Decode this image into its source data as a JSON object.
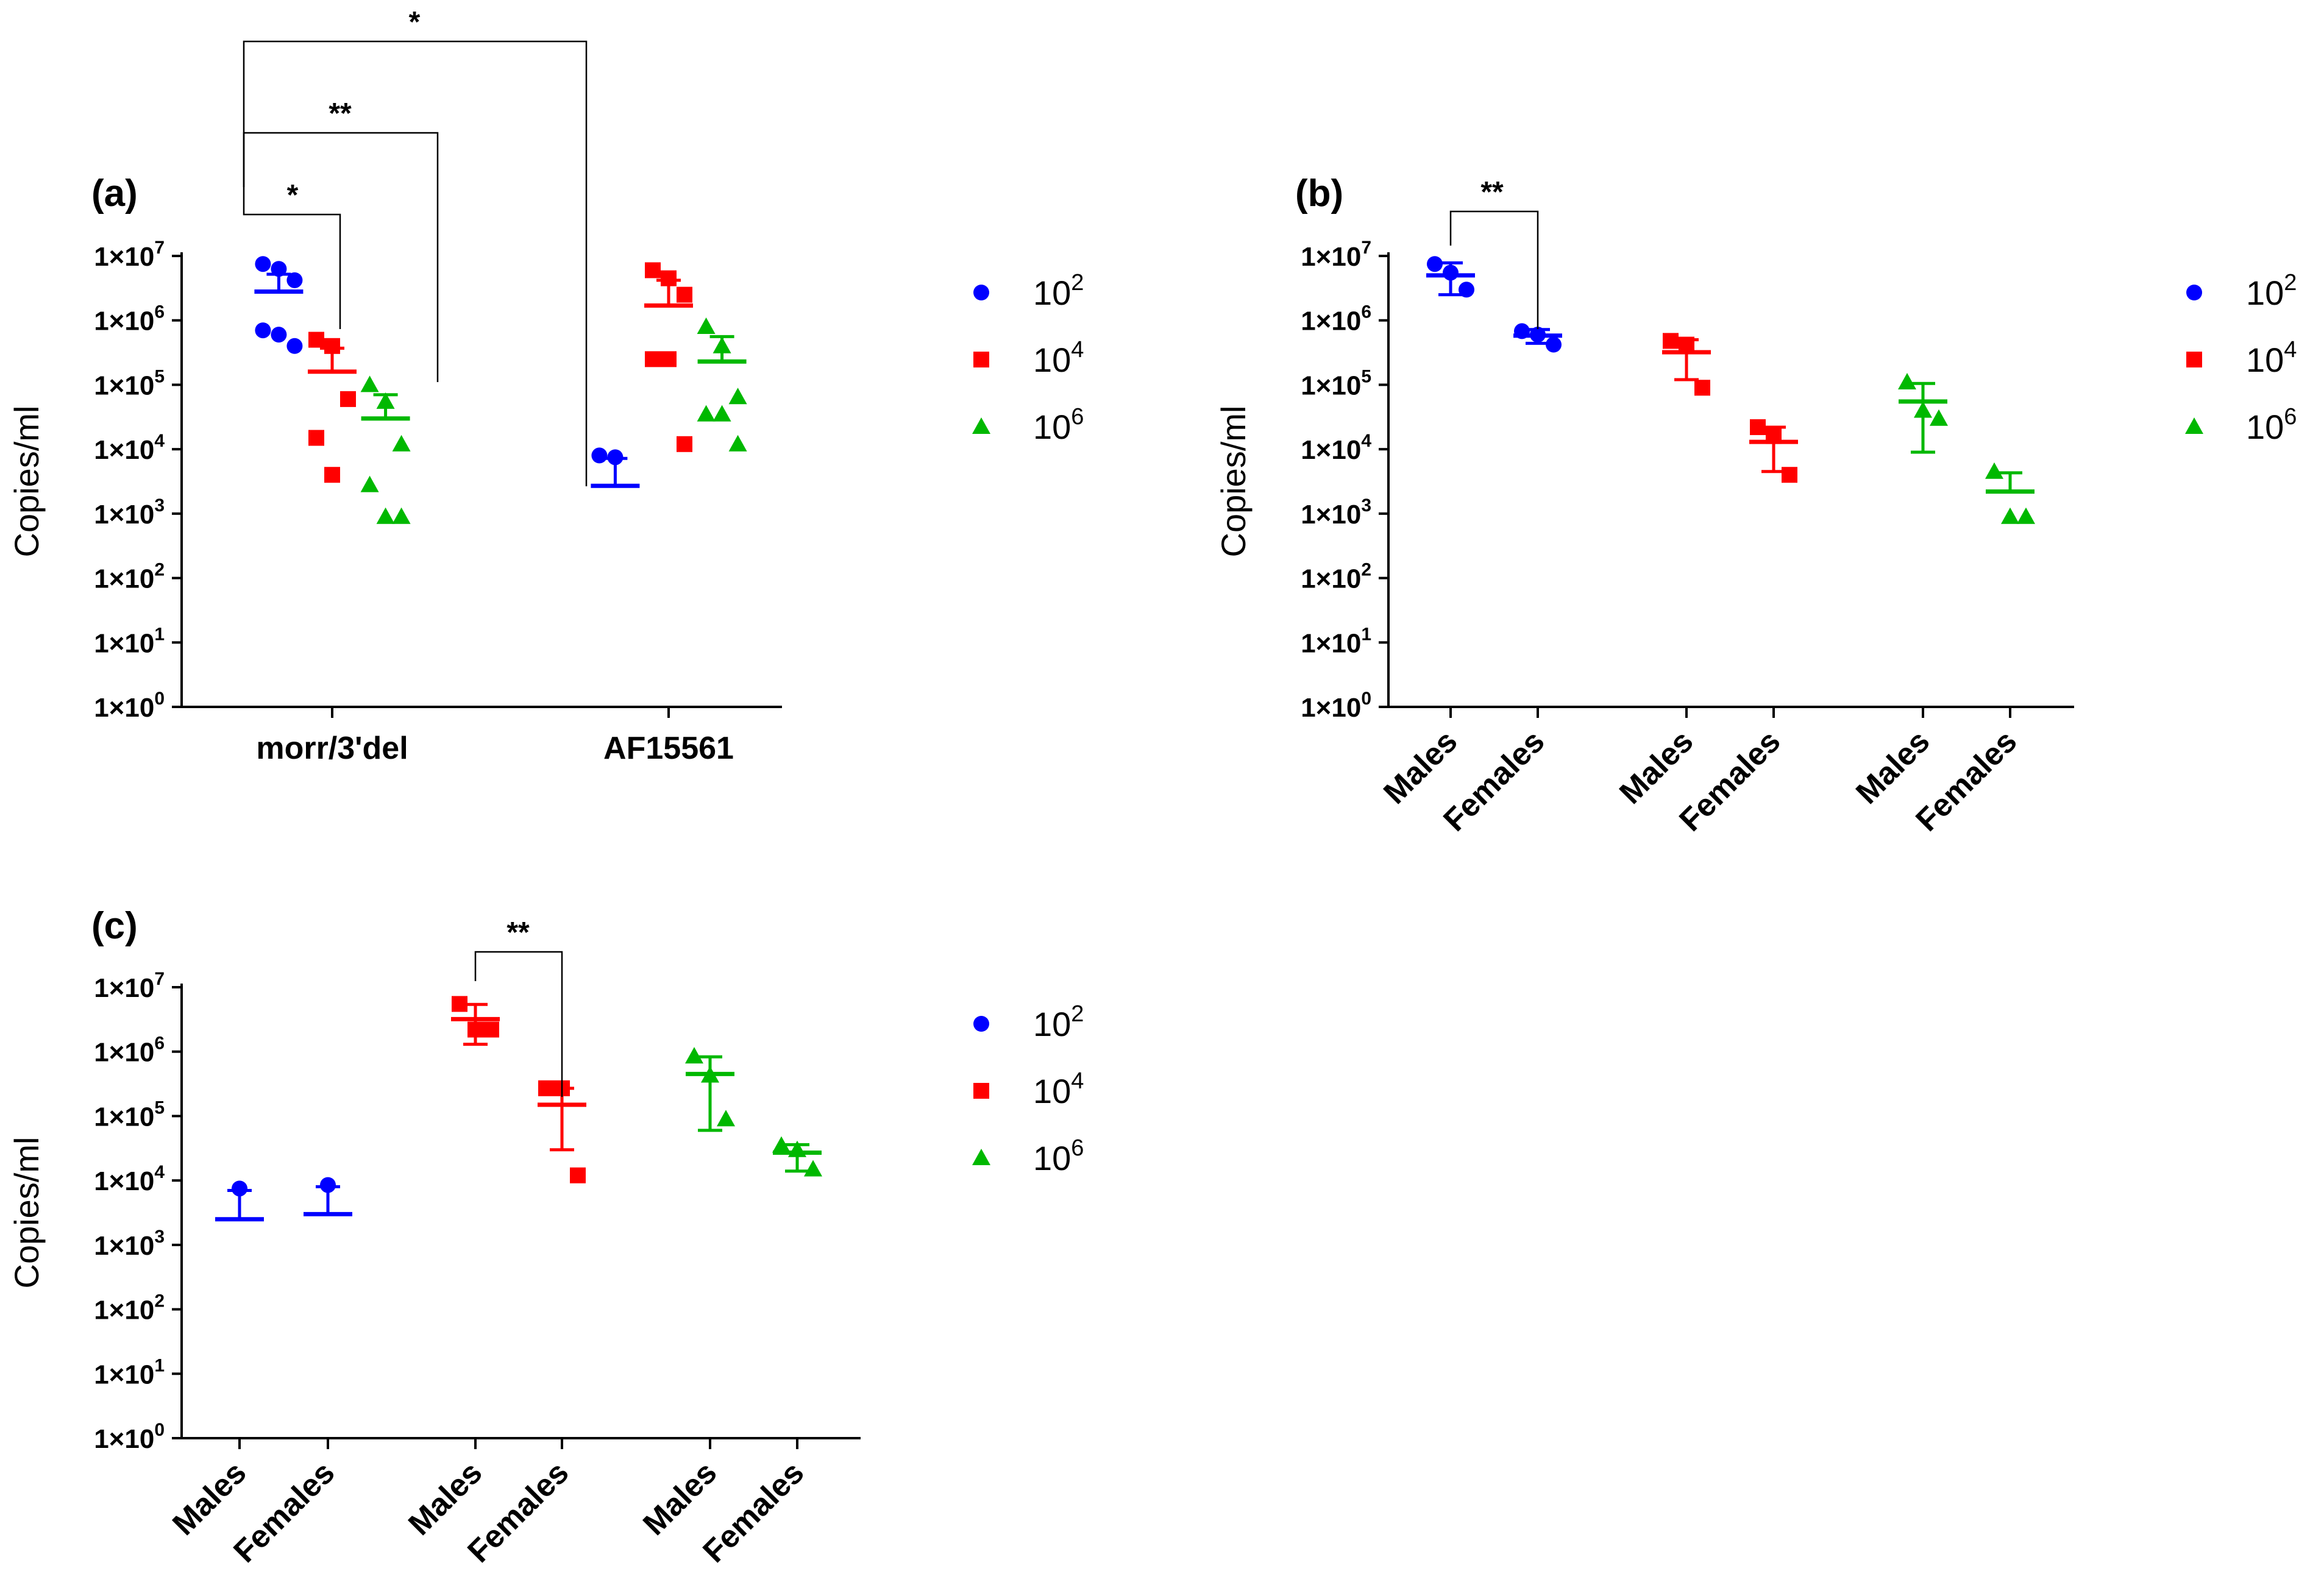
{
  "colors": {
    "blue": "#0000ff",
    "red": "#ff0000",
    "green": "#00b800"
  },
  "legend": [
    {
      "base": "10",
      "exp": "2",
      "marker": "circle",
      "color": "#0000ff"
    },
    {
      "base": "10",
      "exp": "4",
      "marker": "square",
      "color": "#ff0000"
    },
    {
      "base": "10",
      "exp": "6",
      "marker": "triangle",
      "color": "#00b800"
    }
  ],
  "chart_data": [
    {
      "type": "scatter",
      "panel": "(a)",
      "ylabel": "Copies/ml",
      "yscale": "log",
      "ylim": [
        1,
        10000000
      ],
      "ytick_exponents": [
        0,
        1,
        2,
        3,
        4,
        5,
        6,
        7
      ],
      "tick_prefix": "1×10",
      "categories": [
        "morr/3'del",
        "AF15561"
      ],
      "series": [
        {
          "name": "10^2",
          "color": "#0000ff",
          "marker": "circle",
          "groups": [
            {
              "category": 0,
              "offset": -0.46,
              "points": [
                7500000,
                6300000,
                4200000,
                700000,
                600000,
                400000
              ],
              "mean": 2800000,
              "err_high": 5200000
            },
            {
              "category": 1,
              "offset": -0.46,
              "points": [
                8000,
                7500
              ],
              "mean": 2700,
              "err_high": 7200
            }
          ]
        },
        {
          "name": "10^4",
          "color": "#ff0000",
          "marker": "square",
          "groups": [
            {
              "category": 0,
              "offset": 0,
              "points": [
                500000,
                400000,
                60000,
                15000,
                4000,
                0
              ],
              "mean": 160000,
              "err_high": 370000
            },
            {
              "category": 1,
              "offset": 0,
              "points": [
                6000000,
                4500000,
                2500000,
                250000,
                250000,
                12000
              ],
              "mean": 1700000,
              "err_high": 4200000
            }
          ]
        },
        {
          "name": "10^6",
          "color": "#00b800",
          "marker": "triangle",
          "groups": [
            {
              "category": 0,
              "offset": 0.46,
              "points": [
                100000,
                55000,
                12000,
                2800,
                900,
                900
              ],
              "mean": 30000,
              "err_high": 70000
            },
            {
              "category": 1,
              "offset": 0.46,
              "points": [
                800000,
                400000,
                65000,
                35000,
                35000,
                12000
              ],
              "mean": 230000,
              "err_high": 560000
            }
          ]
        }
      ],
      "significance": [
        {
          "from": "10^2 morr/3'del",
          "to": "10^4 morr/3'del",
          "label": "*"
        },
        {
          "from": "10^2 morr/3'del",
          "to": "10^6 morr/3'del",
          "label": "**"
        },
        {
          "from": "10^2 morr/3'del",
          "to": "10^2 AF15561",
          "label": "*"
        }
      ]
    },
    {
      "type": "scatter",
      "panel": "(b)",
      "ylabel": "Copies/ml",
      "yscale": "log",
      "ylim": [
        1,
        10000000
      ],
      "ytick_exponents": [
        0,
        1,
        2,
        3,
        4,
        5,
        6,
        7
      ],
      "tick_prefix": "1×10",
      "categories": [
        "Males",
        "Females",
        "Males",
        "Females",
        "Males",
        "Females"
      ],
      "series": [
        {
          "name": "10^2",
          "color": "#0000ff",
          "marker": "circle",
          "groups": [
            {
              "category": 0,
              "points": [
                7500000,
                5500000,
                3000000
              ],
              "mean": 5000000,
              "err_low": 2500000,
              "err_high": 7800000
            },
            {
              "category": 1,
              "points": [
                680000,
                600000,
                420000
              ],
              "mean": 580000,
              "err_low": 440000,
              "err_high": 720000
            }
          ]
        },
        {
          "name": "10^4",
          "color": "#ff0000",
          "marker": "square",
          "groups": [
            {
              "category": 2,
              "points": [
                480000,
                420000,
                90000
              ],
              "mean": 320000,
              "err_low": 120000,
              "err_high": 500000
            },
            {
              "category": 3,
              "points": [
                22000,
                16000,
                4000
              ],
              "mean": 13000,
              "err_low": 4500,
              "err_high": 22000
            }
          ]
        },
        {
          "name": "10^6",
          "color": "#00b800",
          "marker": "triangle",
          "groups": [
            {
              "category": 4,
              "points": [
                110000,
                40000,
                30000
              ],
              "mean": 55000,
              "err_low": 9000,
              "err_high": 105000
            },
            {
              "category": 5,
              "points": [
                4500,
                900,
                900
              ],
              "mean": 2200,
              "err_high": 4300
            }
          ]
        }
      ],
      "significance": [
        {
          "from": "Males 10^2",
          "to": "Females 10^2",
          "label": "**"
        }
      ]
    },
    {
      "type": "scatter",
      "panel": "(c)",
      "ylabel": "Copies/ml",
      "yscale": "log",
      "ylim": [
        1,
        10000000
      ],
      "ytick_exponents": [
        0,
        1,
        2,
        3,
        4,
        5,
        6,
        7
      ],
      "tick_prefix": "1×10",
      "categories": [
        "Males",
        "Females",
        "Males",
        "Females",
        "Males",
        "Females"
      ],
      "series": [
        {
          "name": "10^2",
          "color": "#0000ff",
          "marker": "circle",
          "groups": [
            {
              "category": 0,
              "points": [
                7500
              ],
              "mean": 2500,
              "err_high": 7000
            },
            {
              "category": 1,
              "points": [
                8500
              ],
              "mean": 3000,
              "err_high": 8000
            }
          ]
        },
        {
          "name": "10^4",
          "color": "#ff0000",
          "marker": "square",
          "groups": [
            {
              "category": 2,
              "points": [
                5500000,
                2200000,
                2200000
              ],
              "mean": 3200000,
              "err_low": 1300000,
              "err_high": 5400000
            },
            {
              "category": 3,
              "points": [
                270000,
                270000,
                12000
              ],
              "mean": 150000,
              "err_low": 30000,
              "err_high": 270000
            }
          ]
        },
        {
          "name": "10^6",
          "color": "#00b800",
          "marker": "triangle",
          "groups": [
            {
              "category": 4,
              "points": [
                850000,
                430000,
                90000
              ],
              "mean": 450000,
              "err_low": 60000,
              "err_high": 830000
            },
            {
              "category": 5,
              "points": [
                35000,
                30000,
                15000
              ],
              "mean": 27000,
              "err_low": 14000,
              "err_high": 36000
            }
          ]
        }
      ],
      "significance": [
        {
          "from": "Males 10^4",
          "to": "Females 10^4",
          "label": "**"
        }
      ]
    }
  ]
}
